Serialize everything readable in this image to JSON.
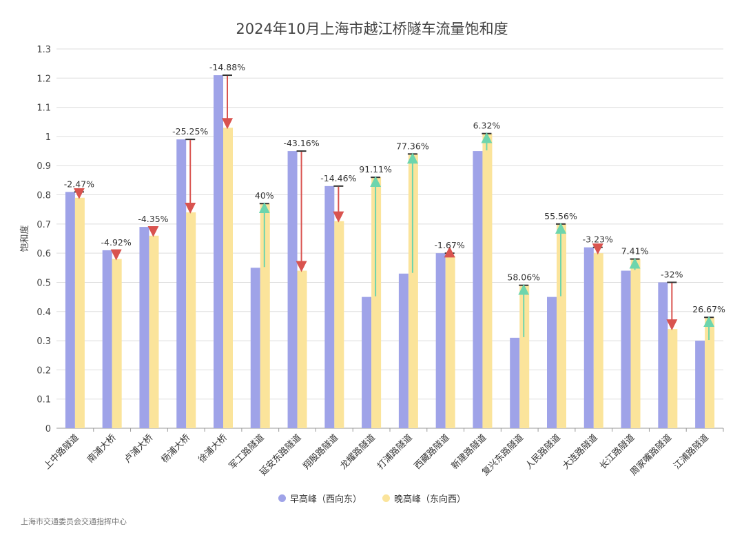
{
  "chart_data": {
    "type": "bar",
    "title": "2024年10月上海市越江桥隧车流量饱和度",
    "ylabel": "饱和度",
    "xlabel": "",
    "ylim": [
      0,
      1.3
    ],
    "yticks": [
      "0",
      "0.1",
      "0.2",
      "0.3",
      "0.4",
      "0.5",
      "0.6",
      "0.7",
      "0.8",
      "0.9",
      "1",
      "1.1",
      "1.2",
      "1.3"
    ],
    "grid": true,
    "legend_position": "bottom",
    "categories": [
      "上中路隧道",
      "南浦大桥",
      "卢浦大桥",
      "杨浦大桥",
      "徐浦大桥",
      "军工路隧道",
      "延安东路隧道",
      "翔殷路隧道",
      "龙耀路隧道",
      "打浦路隧道",
      "西藏路隧道",
      "新建路隧道",
      "复兴东路隧道",
      "人民路隧道",
      "大连路隧道",
      "长江路隧道",
      "周家嘴路隧道",
      "江浦路隧道"
    ],
    "series": [
      {
        "name": "早高峰（西向东）",
        "color": "#9fa3e8",
        "values": [
          0.81,
          0.61,
          0.69,
          0.99,
          1.21,
          0.55,
          0.95,
          0.83,
          0.45,
          0.53,
          0.6,
          0.95,
          0.31,
          0.45,
          0.62,
          0.54,
          0.5,
          0.3
        ]
      },
      {
        "name": "晚高峰（东向西）",
        "color": "#fbe49b",
        "values": [
          0.79,
          0.58,
          0.66,
          0.74,
          1.03,
          0.77,
          0.54,
          0.71,
          0.86,
          0.94,
          0.59,
          1.01,
          0.49,
          0.7,
          0.6,
          0.58,
          0.34,
          0.38
        ]
      }
    ],
    "change_labels": [
      "-2.47%",
      "-4.92%",
      "-4.35%",
      "-25.25%",
      "-14.88%",
      "40%",
      "-43.16%",
      "-14.46%",
      "91.11%",
      "77.36%",
      "-1.67%",
      "6.32%",
      "58.06%",
      "55.56%",
      "-3.23%",
      "7.41%",
      "-32%",
      "26.67%"
    ],
    "increase_color": "#6dd5ad",
    "decrease_color": "#d9534f"
  },
  "source": "上海市交通委员会交通指挥中心"
}
